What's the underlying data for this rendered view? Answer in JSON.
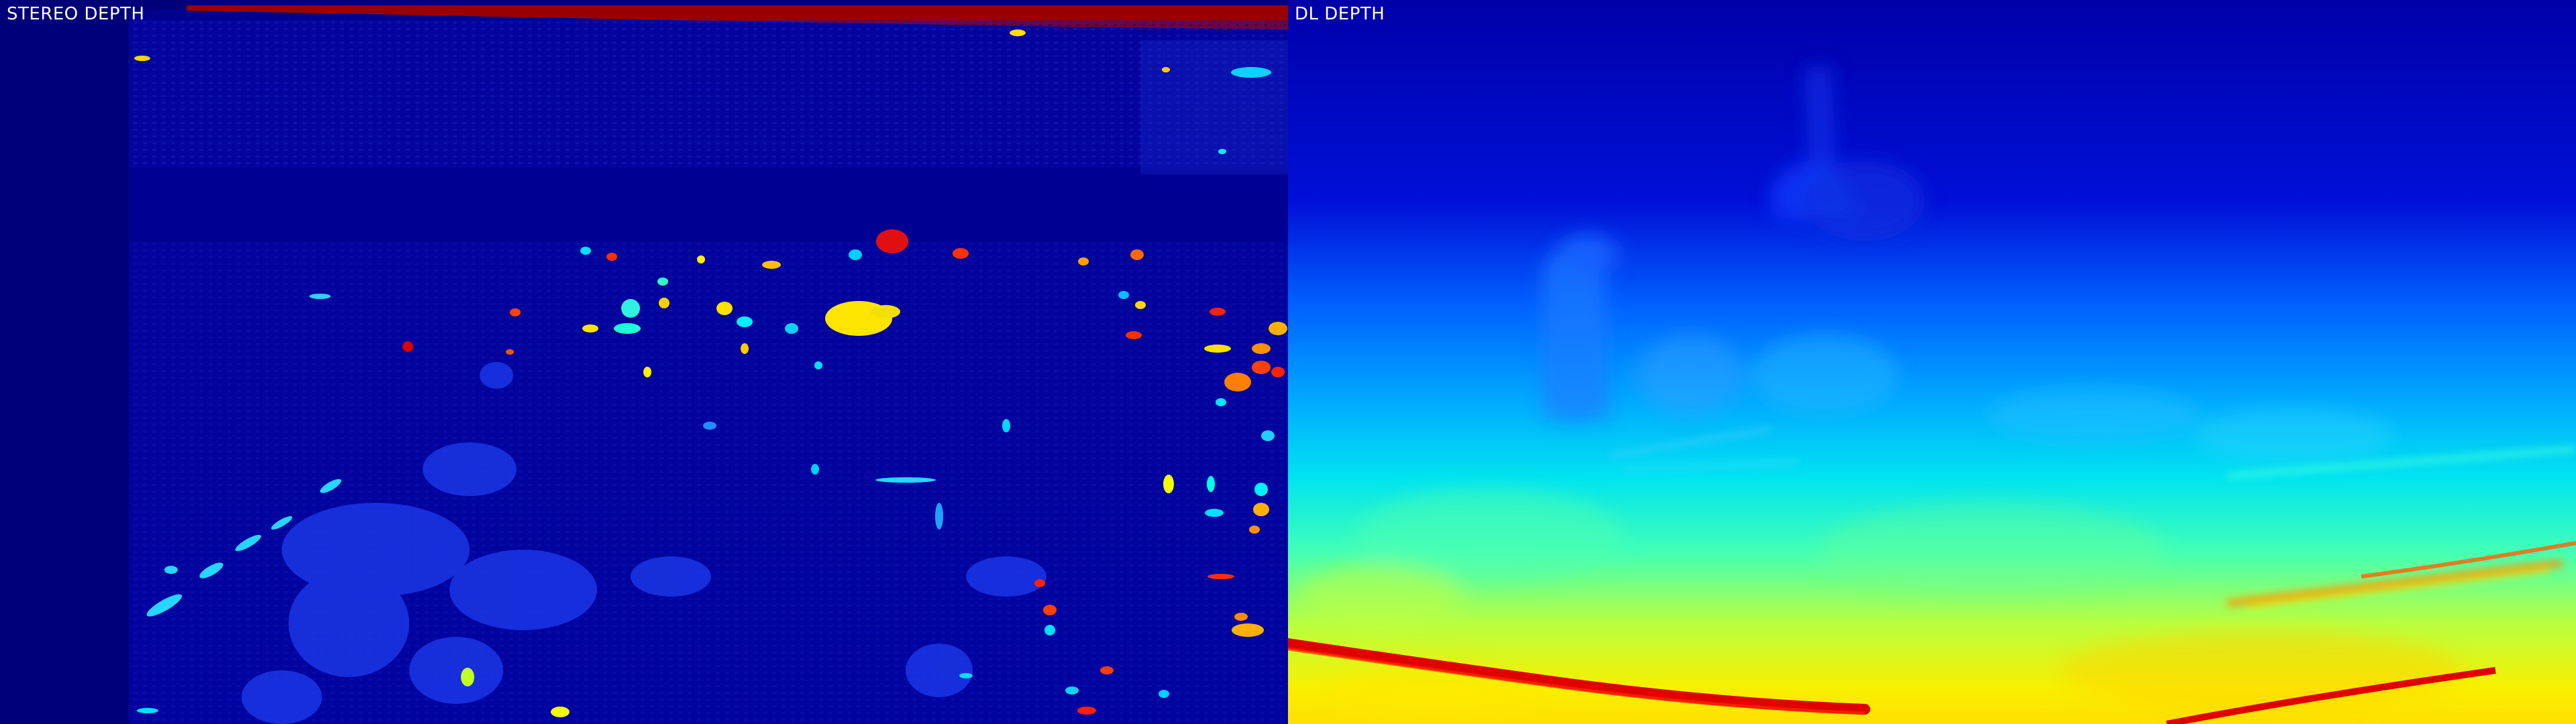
{
  "panels": {
    "stereo": {
      "label": "STEREO DEPTH"
    },
    "dl": {
      "label": "DL DEPTH"
    }
  },
  "colormap": {
    "name": "jet",
    "deep_blue": "#00008b",
    "blue": "#0000ff",
    "cyan": "#00ffff",
    "yellow": "#ffff00",
    "red": "#ff0000",
    "dark_red": "#8b0000"
  }
}
